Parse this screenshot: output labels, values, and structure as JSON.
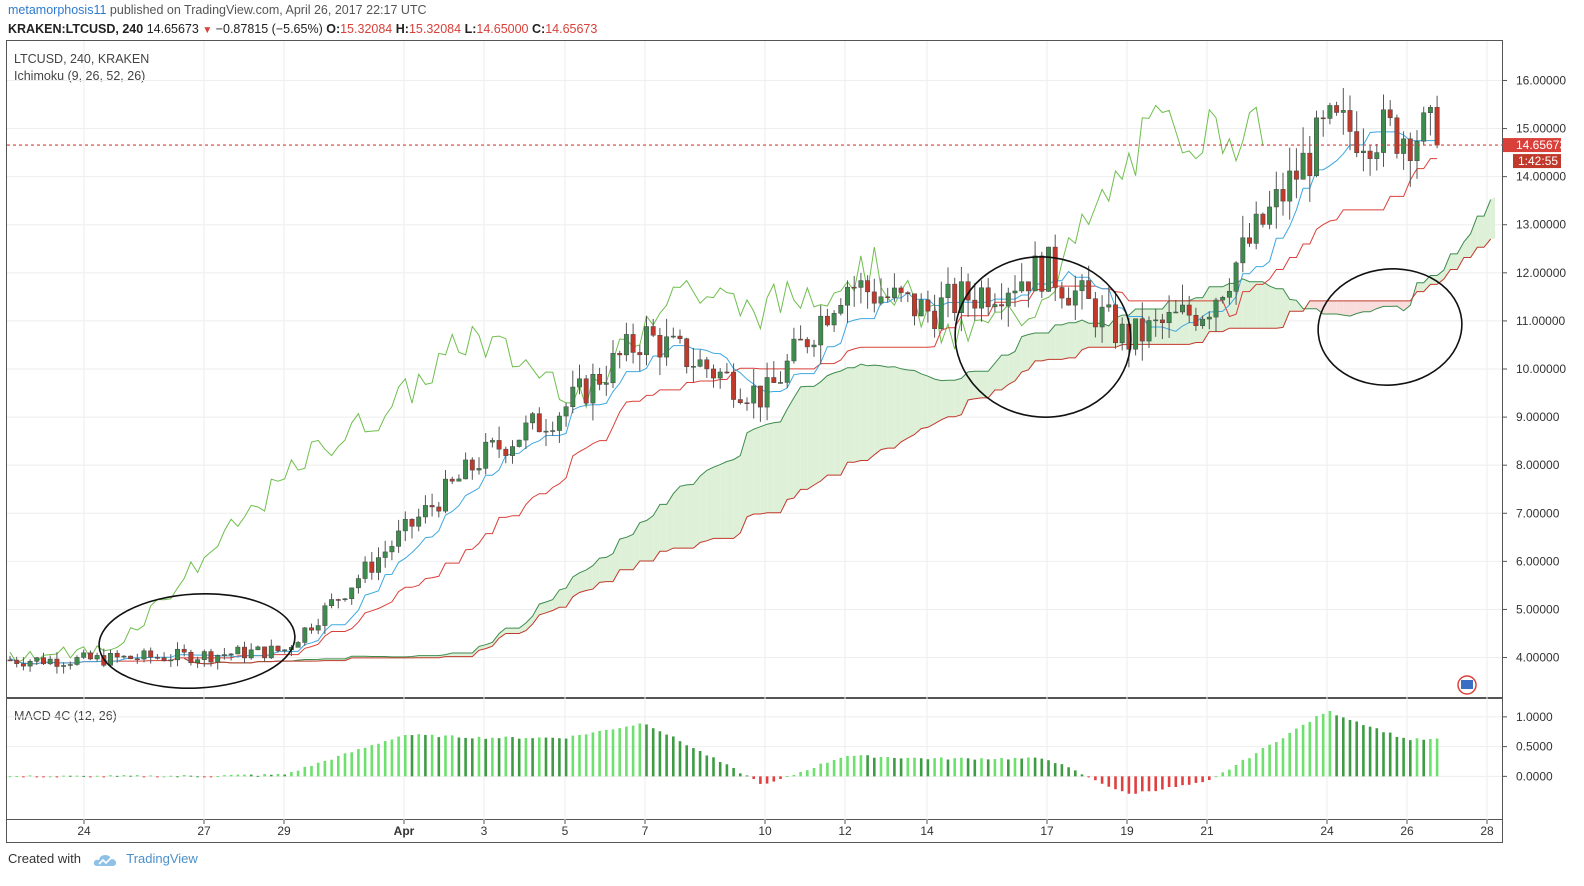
{
  "header": {
    "author": "metamorphosis11",
    "published": "published on TradingView.com, April 26, 2017 22:17 UTC",
    "symbol": "KRAKEN:LTCUSD, 240",
    "last": "14.65673",
    "change": "−0.87815 (−5.65%)",
    "o_label": "O:",
    "o": "15.32084",
    "h_label": "H:",
    "h": "15.32084",
    "l_label": "L:",
    "l": "14.65000",
    "c_label": "C:",
    "c": "14.65673"
  },
  "price_pane": {
    "title": "LTCUSD, 240, KRAKEN",
    "indicator": "Ichimoku (9, 26, 52, 26)",
    "last_price_tag": "14.65673",
    "countdown_tag": "1:42:55",
    "y_ticks": [
      "16.00000",
      "15.00000",
      "14.00000",
      "13.00000",
      "12.00000",
      "11.00000",
      "10.00000",
      "9.00000",
      "8.00000",
      "7.00000",
      "6.00000",
      "5.00000",
      "4.00000"
    ]
  },
  "macd_pane": {
    "title": "MACD 4C (12, 26)",
    "y_ticks": [
      "1.0000",
      "0.5000",
      "0.0000"
    ]
  },
  "x_axis": {
    "ticks": [
      "24",
      "27",
      "29",
      "Apr",
      "3",
      "5",
      "7",
      "10",
      "12",
      "14",
      "17",
      "19",
      "21",
      "24",
      "26",
      "28"
    ]
  },
  "footer": {
    "created": "Created with",
    "brand": "TradingView"
  },
  "colors": {
    "up": "#3d8c4d",
    "down": "#c0392b",
    "tenkan": "#3ea8e0",
    "kijun": "#d9403a",
    "chikou": "#6fbf4e",
    "cloud_bull": "#dff0d8",
    "cloud_bear": "#f9dcdc",
    "macd_up": "#6ee06e",
    "macd_up_dark": "#3f9c45",
    "macd_down": "#e04040",
    "annotation": "#111111",
    "last_price_line": "#e03c32"
  },
  "chart_data": [
    {
      "type": "candlestick",
      "title": "LTCUSD, 240, KRAKEN",
      "x_labels": [
        "24",
        "27",
        "29",
        "Apr",
        "3",
        "5",
        "7",
        "10",
        "12",
        "14",
        "17",
        "19",
        "21",
        "24",
        "26",
        "28"
      ],
      "ylim": [
        3.2,
        16.8
      ],
      "close_path": [
        {
          "x": "24",
          "y": 3.95
        },
        {
          "x": "27",
          "y": 4.05
        },
        {
          "x": "29",
          "y": 4.15
        },
        {
          "x": "Apr",
          "y": 6.6
        },
        {
          "x": "3",
          "y": 8.2
        },
        {
          "x": "5",
          "y": 9.2
        },
        {
          "x": "7",
          "y": 10.7
        },
        {
          "x": "10",
          "y": 9.4
        },
        {
          "x": "12",
          "y": 11.8
        },
        {
          "x": "14",
          "y": 11.2
        },
        {
          "x": "17",
          "y": 12.1
        },
        {
          "x": "19",
          "y": 10.6
        },
        {
          "x": "21",
          "y": 11.3
        },
        {
          "x": "24",
          "y": 15.0
        },
        {
          "x": "26",
          "y": 14.9
        }
      ],
      "last": 14.65673
    },
    {
      "type": "bar",
      "title": "MACD 4C (12, 26)",
      "ylim": [
        -0.7,
        1.25
      ],
      "series": [
        {
          "name": "MACD",
          "values_by_tick": [
            {
              "x": "24",
              "y": 0.0
            },
            {
              "x": "27",
              "y": 0.01
            },
            {
              "x": "29",
              "y": 0.03
            },
            {
              "x": "Apr",
              "y": 0.7
            },
            {
              "x": "3",
              "y": 0.65
            },
            {
              "x": "5",
              "y": 0.65
            },
            {
              "x": "7",
              "y": 0.9
            },
            {
              "x": "10",
              "y": -0.15
            },
            {
              "x": "12",
              "y": 0.35
            },
            {
              "x": "14",
              "y": 0.3
            },
            {
              "x": "17",
              "y": 0.3
            },
            {
              "x": "19",
              "y": -0.3
            },
            {
              "x": "21",
              "y": -0.1
            },
            {
              "x": "24",
              "y": 1.1
            },
            {
              "x": "26",
              "y": 0.62
            }
          ]
        }
      ]
    }
  ]
}
